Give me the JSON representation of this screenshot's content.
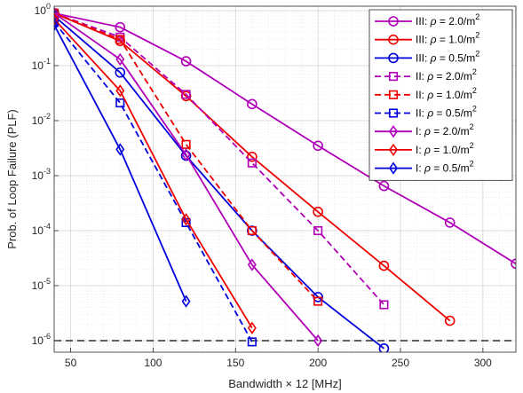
{
  "chart_data": {
    "type": "line",
    "xlabel": "Bandwidth × 12 [MHz]",
    "ylabel": "Prob. of Loop Failure (PLF)",
    "xscale": "linear",
    "yscale": "log",
    "xlim": [
      40,
      320
    ],
    "ylim": [
      1e-06,
      1
    ],
    "ylim_note": "axis extends slightly below 1e-6",
    "xticks": [
      50,
      100,
      150,
      200,
      250,
      300
    ],
    "xtick_labels": [
      "50",
      "100",
      "150",
      "200",
      "250",
      "300"
    ],
    "yticks": [
      1,
      0.1,
      0.01,
      0.001,
      0.0001,
      1e-05,
      1e-06
    ],
    "ytick_labels": [
      {
        "base": "10",
        "exp": "0"
      },
      {
        "base": "10",
        "exp": "-1"
      },
      {
        "base": "10",
        "exp": "-2"
      },
      {
        "base": "10",
        "exp": "-3"
      },
      {
        "base": "10",
        "exp": "-4"
      },
      {
        "base": "10",
        "exp": "-5"
      },
      {
        "base": "10",
        "exp": "-6"
      }
    ],
    "grid": true,
    "minor_grid": true,
    "legend_position": "top-right",
    "reference_line": {
      "y": 1e-06,
      "style": "dashed",
      "color": "#000000"
    },
    "series": [
      {
        "name": "III: ρ = 2.0/m²",
        "prefix": "III: ",
        "sup": "2",
        "tail": " = 2.0/m",
        "color": "#b000b8",
        "dash": "solid",
        "marker": "circle",
        "x": [
          40,
          80,
          120,
          160,
          200,
          240,
          280,
          320
        ],
        "y": [
          0.9,
          0.5,
          0.12,
          0.02,
          0.0035,
          0.00065,
          0.00014,
          2.5e-05
        ]
      },
      {
        "name": "III: ρ = 1.0/m²",
        "prefix": "III: ",
        "sup": "2",
        "tail": " = 1.0/m",
        "color": "#ee0000",
        "dash": "solid",
        "marker": "circle",
        "x": [
          40,
          80,
          120,
          160,
          200,
          240,
          280
        ],
        "y": [
          0.9,
          0.28,
          0.028,
          0.0022,
          0.00022,
          2.3e-05,
          2.3e-06
        ]
      },
      {
        "name": "III: ρ = 0.5/m²",
        "prefix": "III: ",
        "sup": "2",
        "tail": " = 0.5/m",
        "color": "#0000dd",
        "dash": "solid",
        "marker": "circle",
        "x": [
          40,
          80,
          120,
          160,
          200,
          240
        ],
        "y": [
          0.8,
          0.075,
          0.0023,
          0.0001,
          6.2e-06,
          7.2e-07
        ]
      },
      {
        "name": "II: ρ = 2.0/m²",
        "prefix": "II: ",
        "sup": "2",
        "tail": " = 2.0/m",
        "color": "#b000b8",
        "dash": "dashed",
        "marker": "square",
        "x": [
          40,
          80,
          120,
          160,
          200,
          240
        ],
        "y": [
          0.9,
          0.33,
          0.03,
          0.0017,
          0.0001,
          4.5e-06
        ]
      },
      {
        "name": "II: ρ = 1.0/m²",
        "prefix": "II: ",
        "sup": "2",
        "tail": " = 1.0/m",
        "color": "#ee0000",
        "dash": "dashed",
        "marker": "square",
        "x": [
          40,
          80,
          120,
          160,
          200
        ],
        "y": [
          0.9,
          0.3,
          0.0037,
          0.0001,
          5.2e-06
        ]
      },
      {
        "name": "II: ρ = 0.5/m²",
        "prefix": "II: ",
        "sup": "2",
        "tail": " = 0.5/m",
        "color": "#0000dd",
        "dash": "dashed",
        "marker": "square",
        "x": [
          40,
          80,
          120,
          160
        ],
        "y": [
          0.62,
          0.021,
          0.00014,
          9.5e-07
        ]
      },
      {
        "name": "I: ρ = 2.0/m²",
        "prefix": "I: ",
        "sup": "2",
        "tail": " = 2.0/m",
        "color": "#b000b8",
        "dash": "solid",
        "marker": "diamond",
        "x": [
          40,
          80,
          120,
          160,
          200
        ],
        "y": [
          0.9,
          0.13,
          0.0024,
          2.4e-05,
          1e-06
        ]
      },
      {
        "name": "I: ρ = 1.0/m²",
        "prefix": "I: ",
        "sup": "2",
        "tail": " = 1.0/m",
        "color": "#ee0000",
        "dash": "solid",
        "marker": "diamond",
        "x": [
          40,
          80,
          120,
          160
        ],
        "y": [
          0.7,
          0.035,
          0.00016,
          1.7e-06
        ]
      },
      {
        "name": "I: ρ = 0.5/m²",
        "prefix": "I: ",
        "sup": "2",
        "tail": " = 0.5/m",
        "color": "#0000dd",
        "dash": "solid",
        "marker": "diamond",
        "x": [
          40,
          80,
          120
        ],
        "y": [
          0.55,
          0.003,
          5.2e-06
        ]
      }
    ]
  }
}
